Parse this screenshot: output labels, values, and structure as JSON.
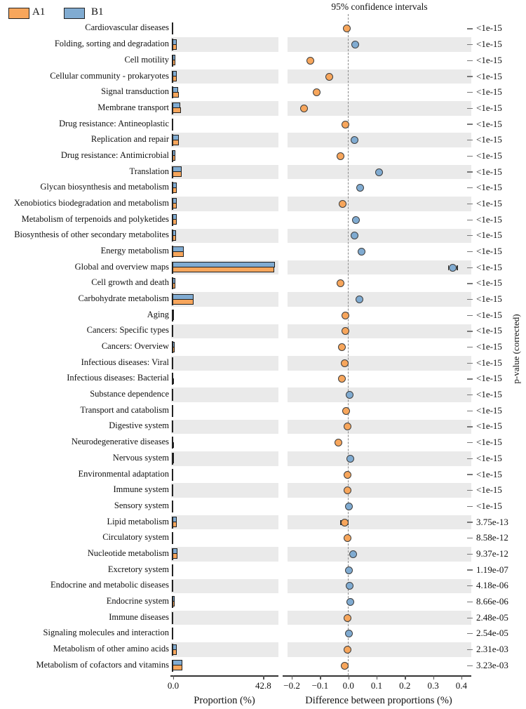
{
  "title": "95% confidence intervals",
  "legend": {
    "a1_label": "A1",
    "b1_label": "B1"
  },
  "colors": {
    "a1": "#F7A65C",
    "b1": "#80ABD1",
    "band": "#EAEAEA",
    "dashed": "#8A8A8A",
    "axis": "#333333"
  },
  "axes": {
    "proportion": {
      "label": "Proportion (%)",
      "ticks": [
        "0.0",
        "42.8"
      ],
      "tick_values": [
        0,
        42.8
      ]
    },
    "difference": {
      "label": "Difference between proportions (%)",
      "ticks": [
        "−0.2",
        "−0.1",
        "0.0",
        "0.1",
        "0.2",
        "0.3",
        "0.4"
      ],
      "tick_values": [
        -0.2,
        -0.1,
        0.0,
        0.1,
        0.2,
        0.3,
        0.4
      ]
    },
    "right": {
      "label": "p-value (corrected)"
    }
  },
  "chart_data": {
    "type": "extended-error-bar (bar + dot difference plot)",
    "title": "95% confidence intervals",
    "xlabel_left": "Proportion (%)",
    "xlabel_right": "Difference between proportions (%)",
    "ylabel_right": "p-value (corrected)",
    "proportion_axis_range": [
      0,
      42.8
    ],
    "difference_axis_range": [
      -0.2,
      0.4
    ],
    "series": [
      {
        "name": "A1",
        "color": "#F7A65C"
      },
      {
        "name": "B1",
        "color": "#80ABD1"
      }
    ],
    "rows": [
      {
        "label": "Cardiovascular diseases",
        "a1": 0.03,
        "b1": 0.03,
        "diff": -0.005,
        "ci": 0.006,
        "enriched": "A1",
        "p": "<1e-15"
      },
      {
        "label": "Folding, sorting and degradation",
        "a1": 1.35,
        "b1": 1.38,
        "diff": 0.025,
        "ci": 0.006,
        "enriched": "B1",
        "p": "<1e-15"
      },
      {
        "label": "Cell motility",
        "a1": 0.7,
        "b1": 0.57,
        "diff": -0.135,
        "ci": 0.006,
        "enriched": "A1",
        "p": "<1e-15"
      },
      {
        "label": "Cellular community - prokaryotes",
        "a1": 1.32,
        "b1": 1.25,
        "diff": -0.067,
        "ci": 0.006,
        "enriched": "A1",
        "p": "<1e-15"
      },
      {
        "label": "Signal transduction",
        "a1": 2.26,
        "b1": 2.15,
        "diff": -0.111,
        "ci": 0.006,
        "enriched": "A1",
        "p": "<1e-15"
      },
      {
        "label": "Membrane transport",
        "a1": 3.25,
        "b1": 3.09,
        "diff": -0.157,
        "ci": 0.006,
        "enriched": "A1",
        "p": "<1e-15"
      },
      {
        "label": "Drug resistance: Antineoplastic",
        "a1": 0.05,
        "b1": 0.04,
        "diff": -0.01,
        "ci": 0.006,
        "enriched": "A1",
        "p": "<1e-15"
      },
      {
        "label": "Replication and repair",
        "a1": 2.3,
        "b1": 2.32,
        "diff": 0.023,
        "ci": 0.006,
        "enriched": "B1",
        "p": "<1e-15"
      },
      {
        "label": "Drug resistance: Antimicrobial",
        "a1": 0.62,
        "b1": 0.59,
        "diff": -0.028,
        "ci": 0.006,
        "enriched": "A1",
        "p": "<1e-15"
      },
      {
        "label": "Translation",
        "a1": 3.5,
        "b1": 3.61,
        "diff": 0.108,
        "ci": 0.006,
        "enriched": "B1",
        "p": "<1e-15"
      },
      {
        "label": "Glycan biosynthesis and metabolism",
        "a1": 1.3,
        "b1": 1.34,
        "diff": 0.042,
        "ci": 0.006,
        "enriched": "B1",
        "p": "<1e-15"
      },
      {
        "label": "Xenobiotics biodegradation and metabolism",
        "a1": 1.22,
        "b1": 1.2,
        "diff": -0.021,
        "ci": 0.006,
        "enriched": "A1",
        "p": "<1e-15"
      },
      {
        "label": "Metabolism of terpenoids and polyketides",
        "a1": 1.3,
        "b1": 1.33,
        "diff": 0.028,
        "ci": 0.006,
        "enriched": "B1",
        "p": "<1e-15"
      },
      {
        "label": "Biosynthesis of other secondary metabolites",
        "a1": 1.05,
        "b1": 1.07,
        "diff": 0.023,
        "ci": 0.006,
        "enriched": "B1",
        "p": "<1e-15"
      },
      {
        "label": "Energy metabolism",
        "a1": 4.6,
        "b1": 4.65,
        "diff": 0.047,
        "ci": 0.006,
        "enriched": "B1",
        "p": "<1e-15"
      },
      {
        "label": "Global and overview maps",
        "a1": 47.6,
        "b1": 47.97,
        "diff": 0.37,
        "ci": 0.017,
        "enriched": "B1",
        "p": "<1e-15"
      },
      {
        "label": "Cell growth and death",
        "a1": 0.55,
        "b1": 0.52,
        "diff": -0.029,
        "ci": 0.006,
        "enriched": "A1",
        "p": "<1e-15"
      },
      {
        "label": "Carbohydrate metabolism",
        "a1": 9.2,
        "b1": 9.24,
        "diff": 0.038,
        "ci": 0.006,
        "enriched": "B1",
        "p": "<1e-15"
      },
      {
        "label": "Aging",
        "a1": 0.15,
        "b1": 0.14,
        "diff": -0.011,
        "ci": 0.006,
        "enriched": "A1",
        "p": "<1e-15"
      },
      {
        "label": "Cancers: Specific types",
        "a1": 0.07,
        "b1": 0.06,
        "diff": -0.011,
        "ci": 0.006,
        "enriched": "A1",
        "p": "<1e-15"
      },
      {
        "label": "Cancers: Overview",
        "a1": 0.2,
        "b1": 0.18,
        "diff": -0.022,
        "ci": 0.006,
        "enriched": "A1",
        "p": "<1e-15"
      },
      {
        "label": "Infectious diseases: Viral",
        "a1": 0.07,
        "b1": 0.06,
        "diff": -0.013,
        "ci": 0.006,
        "enriched": "A1",
        "p": "<1e-15"
      },
      {
        "label": "Infectious diseases: Bacterial",
        "a1": 0.15,
        "b1": 0.13,
        "diff": -0.022,
        "ci": 0.006,
        "enriched": "A1",
        "p": "<1e-15"
      },
      {
        "label": "Substance dependence",
        "a1": 0.05,
        "b1": 0.05,
        "diff": 0.004,
        "ci": 0.006,
        "enriched": "B1",
        "p": "<1e-15"
      },
      {
        "label": "Transport and catabolism",
        "a1": 0.12,
        "b1": 0.11,
        "diff": -0.009,
        "ci": 0.006,
        "enriched": "A1",
        "p": "<1e-15"
      },
      {
        "label": "Digestive system",
        "a1": 0.06,
        "b1": 0.06,
        "diff": -0.004,
        "ci": 0.006,
        "enriched": "A1",
        "p": "<1e-15"
      },
      {
        "label": "Neurodegenerative diseases",
        "a1": 0.15,
        "b1": 0.11,
        "diff": -0.036,
        "ci": 0.006,
        "enriched": "A1",
        "p": "<1e-15"
      },
      {
        "label": "Nervous system",
        "a1": 0.15,
        "b1": 0.16,
        "diff": 0.008,
        "ci": 0.006,
        "enriched": "B1",
        "p": "<1e-15"
      },
      {
        "label": "Environmental adaptation",
        "a1": 0.06,
        "b1": 0.06,
        "diff": -0.004,
        "ci": 0.006,
        "enriched": "A1",
        "p": "<1e-15"
      },
      {
        "label": "Immune system",
        "a1": 0.06,
        "b1": 0.06,
        "diff": -0.004,
        "ci": 0.006,
        "enriched": "A1",
        "p": "<1e-15"
      },
      {
        "label": "Sensory system",
        "a1": 0.03,
        "b1": 0.03,
        "diff": 0.003,
        "ci": 0.006,
        "enriched": "B1",
        "p": "<1e-15"
      },
      {
        "label": "Lipid metabolism",
        "a1": 1.3,
        "b1": 1.29,
        "diff": -0.013,
        "ci": 0.015,
        "enriched": "A1",
        "p": "3.75e-13"
      },
      {
        "label": "Circulatory system",
        "a1": 0.05,
        "b1": 0.05,
        "diff": -0.003,
        "ci": 0.006,
        "enriched": "A1",
        "p": "8.58e-12"
      },
      {
        "label": "Nucleotide metabolism",
        "a1": 1.8,
        "b1": 1.82,
        "diff": 0.018,
        "ci": 0.006,
        "enriched": "B1",
        "p": "9.37e-12"
      },
      {
        "label": "Excretory system",
        "a1": 0.03,
        "b1": 0.03,
        "diff": 0.003,
        "ci": 0.006,
        "enriched": "B1",
        "p": "1.19e-07"
      },
      {
        "label": "Endocrine and metabolic diseases",
        "a1": 0.12,
        "b1": 0.12,
        "diff": 0.004,
        "ci": 0.006,
        "enriched": "B1",
        "p": "4.18e-06"
      },
      {
        "label": "Endocrine system",
        "a1": 0.2,
        "b1": 0.21,
        "diff": 0.006,
        "ci": 0.006,
        "enriched": "B1",
        "p": "8.66e-06"
      },
      {
        "label": "Immune diseases",
        "a1": 0.1,
        "b1": 0.1,
        "diff": -0.002,
        "ci": 0.006,
        "enriched": "A1",
        "p": "2.48e-05"
      },
      {
        "label": "Signaling molecules and interaction",
        "a1": 0.06,
        "b1": 0.06,
        "diff": 0.002,
        "ci": 0.006,
        "enriched": "B1",
        "p": "2.54e-05"
      },
      {
        "label": "Metabolism of other amino acids",
        "a1": 1.3,
        "b1": 1.3,
        "diff": -0.004,
        "ci": 0.006,
        "enriched": "A1",
        "p": "2.31e-03"
      },
      {
        "label": "Metabolism of cofactors and vitamins",
        "a1": 3.95,
        "b1": 3.94,
        "diff": -0.012,
        "ci": 0.006,
        "enriched": "A1",
        "p": "3.23e-03"
      }
    ]
  }
}
